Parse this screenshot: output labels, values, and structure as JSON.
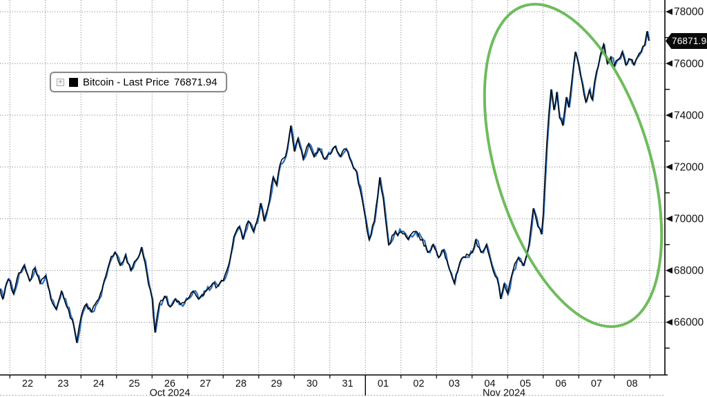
{
  "window": {
    "background": "#ffffff"
  },
  "legend": {
    "expand_icon_glyph": "+",
    "series_label": "Bitcoin - Last Price",
    "value": "76871.94",
    "swatch_color": "#000000"
  },
  "price_tag": {
    "value": "76871.94",
    "bg": "#0a0a0a",
    "text_color": "#ffffff"
  },
  "colors": {
    "line_primary": "#000000",
    "line_secondary": "#2e6fc0",
    "annotation_green": "#5bb347",
    "grid": "#6e6e6e",
    "axis": "#000000",
    "tick_text": "#111111"
  },
  "chart_data": {
    "type": "line",
    "title": "",
    "xlabel": "",
    "ylabel": "",
    "x_axis": {
      "unit": "days since Oct 22 2024 00:00",
      "num_day_cells": 18,
      "day_labels": [
        "22",
        "23",
        "24",
        "25",
        "26",
        "27",
        "28",
        "29",
        "30",
        "31",
        "01",
        "02",
        "03",
        "04",
        "05",
        "06",
        "07",
        "08"
      ],
      "month_labels": [
        {
          "text": "Oct 2024",
          "center_day": 4.5
        },
        {
          "text": "Nov 2024",
          "center_day": 13.9
        },
        {
          "separator_day": 10
        }
      ],
      "range_days": [
        -0.28,
        18.45
      ]
    },
    "y_axis": {
      "side": "right",
      "major_tick_labels": [
        "78000",
        "76000",
        "74000",
        "72000",
        "70000",
        "68000",
        "66000"
      ],
      "major_tick_values": [
        78000,
        76000,
        74000,
        72000,
        70000,
        68000,
        66000
      ],
      "minor_tick_values": [
        77000,
        75000,
        73000,
        71000,
        69000,
        67000,
        65000
      ],
      "ylim": [
        63950,
        78450
      ],
      "grid": true
    },
    "last_price": 76871.94,
    "series": [
      {
        "name": "Bitcoin - Last Price",
        "colors": [
          "#000000",
          "#2e6fc0"
        ],
        "points": [
          [
            -0.28,
            67300
          ],
          [
            -0.2,
            66900
          ],
          [
            -0.1,
            67500
          ],
          [
            0.0,
            67600
          ],
          [
            0.1,
            67100
          ],
          [
            0.25,
            67900
          ],
          [
            0.4,
            68200
          ],
          [
            0.55,
            67600
          ],
          [
            0.7,
            68100
          ],
          [
            0.85,
            67500
          ],
          [
            1.0,
            67800
          ],
          [
            1.15,
            66900
          ],
          [
            1.3,
            66500
          ],
          [
            1.45,
            67200
          ],
          [
            1.6,
            66600
          ],
          [
            1.75,
            66100
          ],
          [
            1.88,
            65200
          ],
          [
            2.0,
            66200
          ],
          [
            2.15,
            66700
          ],
          [
            2.3,
            66400
          ],
          [
            2.5,
            66900
          ],
          [
            2.65,
            67600
          ],
          [
            2.8,
            68300
          ],
          [
            2.95,
            68700
          ],
          [
            3.1,
            68200
          ],
          [
            3.25,
            68600
          ],
          [
            3.4,
            68000
          ],
          [
            3.55,
            68400
          ],
          [
            3.7,
            68900
          ],
          [
            3.85,
            67900
          ],
          [
            4.0,
            66900
          ],
          [
            4.08,
            65600
          ],
          [
            4.2,
            66700
          ],
          [
            4.35,
            67000
          ],
          [
            4.5,
            66600
          ],
          [
            4.65,
            66900
          ],
          [
            4.8,
            66700
          ],
          [
            5.0,
            66900
          ],
          [
            5.15,
            67200
          ],
          [
            5.3,
            66900
          ],
          [
            5.5,
            67200
          ],
          [
            5.7,
            67500
          ],
          [
            5.85,
            67400
          ],
          [
            6.0,
            67600
          ],
          [
            6.15,
            68200
          ],
          [
            6.3,
            69300
          ],
          [
            6.45,
            69700
          ],
          [
            6.55,
            69200
          ],
          [
            6.7,
            69900
          ],
          [
            6.85,
            69500
          ],
          [
            7.0,
            70200
          ],
          [
            7.05,
            70600
          ],
          [
            7.15,
            69900
          ],
          [
            7.3,
            70700
          ],
          [
            7.4,
            71600
          ],
          [
            7.5,
            71300
          ],
          [
            7.6,
            72100
          ],
          [
            7.75,
            72400
          ],
          [
            7.9,
            73600
          ],
          [
            8.0,
            72600
          ],
          [
            8.1,
            73100
          ],
          [
            8.25,
            72300
          ],
          [
            8.4,
            72900
          ],
          [
            8.55,
            72400
          ],
          [
            8.7,
            72700
          ],
          [
            8.85,
            72300
          ],
          [
            9.0,
            72500
          ],
          [
            9.15,
            72800
          ],
          [
            9.3,
            72400
          ],
          [
            9.45,
            72700
          ],
          [
            9.6,
            72200
          ],
          [
            9.75,
            71800
          ],
          [
            9.9,
            70800
          ],
          [
            10.0,
            70000
          ],
          [
            10.1,
            69200
          ],
          [
            10.25,
            69900
          ],
          [
            10.4,
            71600
          ],
          [
            10.5,
            70800
          ],
          [
            10.65,
            69000
          ],
          [
            10.8,
            69400
          ],
          [
            11.0,
            69500
          ],
          [
            11.2,
            69200
          ],
          [
            11.4,
            69500
          ],
          [
            11.6,
            69200
          ],
          [
            11.75,
            68700
          ],
          [
            11.9,
            69000
          ],
          [
            12.05,
            68500
          ],
          [
            12.2,
            68800
          ],
          [
            12.4,
            67900
          ],
          [
            12.5,
            67500
          ],
          [
            12.65,
            68300
          ],
          [
            12.8,
            68500
          ],
          [
            13.0,
            68700
          ],
          [
            13.1,
            69200
          ],
          [
            13.25,
            68700
          ],
          [
            13.4,
            69000
          ],
          [
            13.55,
            68200
          ],
          [
            13.7,
            67700
          ],
          [
            13.8,
            66900
          ],
          [
            13.9,
            67500
          ],
          [
            14.0,
            67100
          ],
          [
            14.15,
            68000
          ],
          [
            14.3,
            68500
          ],
          [
            14.45,
            68200
          ],
          [
            14.6,
            69000
          ],
          [
            14.72,
            70400
          ],
          [
            14.85,
            69700
          ],
          [
            14.95,
            69400
          ],
          [
            15.0,
            70200
          ],
          [
            15.05,
            71600
          ],
          [
            15.1,
            72900
          ],
          [
            15.16,
            74100
          ],
          [
            15.22,
            75000
          ],
          [
            15.3,
            74200
          ],
          [
            15.38,
            74900
          ],
          [
            15.46,
            73900
          ],
          [
            15.55,
            73600
          ],
          [
            15.65,
            74700
          ],
          [
            15.72,
            74300
          ],
          [
            15.8,
            75300
          ],
          [
            15.9,
            76450
          ],
          [
            16.0,
            75900
          ],
          [
            16.1,
            75200
          ],
          [
            16.2,
            74500
          ],
          [
            16.3,
            75000
          ],
          [
            16.38,
            74600
          ],
          [
            16.5,
            75700
          ],
          [
            16.6,
            76300
          ],
          [
            16.7,
            76750
          ],
          [
            16.8,
            76000
          ],
          [
            16.9,
            76250
          ],
          [
            17.0,
            75900
          ],
          [
            17.1,
            76150
          ],
          [
            17.22,
            76450
          ],
          [
            17.32,
            75950
          ],
          [
            17.45,
            76150
          ],
          [
            17.55,
            75950
          ],
          [
            17.65,
            76250
          ],
          [
            17.75,
            76450
          ],
          [
            17.85,
            76700
          ],
          [
            17.92,
            77250
          ],
          [
            17.97,
            76871.94
          ]
        ]
      }
    ],
    "annotations": [
      {
        "type": "ellipse",
        "color": "#5bb347",
        "center_day": 15.84,
        "center_price": 72060,
        "rx_days": 2.17,
        "ry_price": 6450,
        "rotate_deg": -17
      }
    ],
    "legend_position": "upper-left",
    "grid": "dotted"
  }
}
